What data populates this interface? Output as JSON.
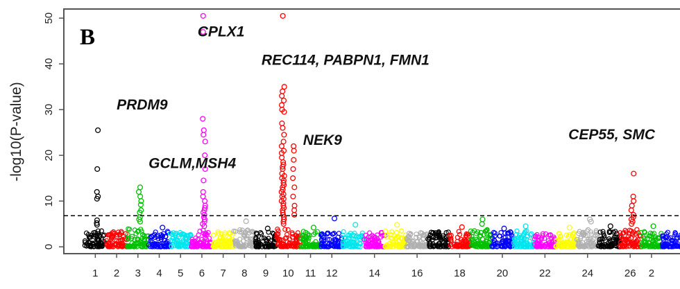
{
  "chart_data": {
    "type": "scatter",
    "panel_label": "B",
    "ylabel": "-log10(P-value)",
    "xlabel": "",
    "ylim": [
      -1.5,
      52
    ],
    "yticks": [
      0,
      10,
      20,
      30,
      40,
      50
    ],
    "threshold": 6.8,
    "grid": false,
    "x_tick_labels": [
      "1",
      "2",
      "3",
      "4",
      "5",
      "6",
      "7",
      "8",
      "9",
      "10",
      "11",
      "12",
      "14",
      "16",
      "18",
      "20",
      "22",
      "24",
      "26",
      "2"
    ],
    "chromosomes": [
      {
        "chr": 1,
        "color": "#000000",
        "baseline_max": 3.5,
        "peaks": [
          25.5,
          17,
          12,
          11,
          10.5,
          5.8,
          5.2,
          4.8
        ]
      },
      {
        "chr": 2,
        "color": "#ff0000",
        "baseline_max": 3.4,
        "peaks": []
      },
      {
        "chr": 3,
        "color": "#00c000",
        "baseline_max": 4.0,
        "peaks": [
          13,
          12,
          11,
          10,
          9.2,
          8,
          7.5,
          6.5,
          6,
          5.5
        ]
      },
      {
        "chr": 4,
        "color": "#0000ff",
        "baseline_max": 3.4,
        "peaks": [
          4.2
        ]
      },
      {
        "chr": 5,
        "color": "#00e5ee",
        "baseline_max": 3.2,
        "peaks": []
      },
      {
        "chr": 6,
        "color": "#ff00ff",
        "baseline_max": 3.8,
        "peaks": [
          50.5,
          47,
          28,
          25.5,
          24.5,
          23,
          20,
          17,
          14.5,
          12,
          11,
          10,
          9,
          8.5,
          8,
          7.5,
          7,
          6.5,
          6,
          5.5,
          5,
          4.5
        ]
      },
      {
        "chr": 7,
        "color": "#ffff00",
        "baseline_max": 3.3,
        "peaks": []
      },
      {
        "chr": 8,
        "color": "#b0b0b0",
        "baseline_max": 4.0,
        "peaks": [
          5.6
        ]
      },
      {
        "chr": 9,
        "color": "#000000",
        "baseline_max": 3.4,
        "peaks": [
          4.0
        ]
      },
      {
        "chr": 10,
        "color": "#ff0000",
        "baseline_max": 4.0,
        "peaks": [
          50.5,
          35,
          34,
          33,
          32,
          31,
          30,
          29.5,
          27,
          26,
          24.5,
          23,
          22,
          21,
          20.5,
          19.5,
          18.5,
          18,
          17.5,
          17,
          16,
          15.5,
          15,
          14.5,
          14,
          13.5,
          13,
          12.5,
          12,
          11.5,
          11,
          10.5,
          10,
          9.5,
          9,
          8.5,
          8,
          7.5,
          7,
          6.5,
          6,
          5.5,
          5
        ]
      },
      {
        "chr": 10.5,
        "color": "#ff0000",
        "baseline_max": 3.8,
        "peaks": [
          22,
          21,
          19,
          17,
          15,
          13,
          11,
          9,
          8,
          7
        ]
      },
      {
        "chr": 11,
        "color": "#00c000",
        "baseline_max": 3.4,
        "peaks": [
          4.2
        ]
      },
      {
        "chr": 12,
        "color": "#0000ff",
        "baseline_max": 3.2,
        "peaks": [
          6.2
        ]
      },
      {
        "chr": 13,
        "color": "#00e5ee",
        "baseline_max": 3.4,
        "peaks": [
          4.8
        ]
      },
      {
        "chr": 14,
        "color": "#ff00ff",
        "baseline_max": 3.2,
        "peaks": []
      },
      {
        "chr": 15,
        "color": "#ffff00",
        "baseline_max": 3.6,
        "peaks": [
          4.8
        ]
      },
      {
        "chr": 16,
        "color": "#b0b0b0",
        "baseline_max": 3.1,
        "peaks": []
      },
      {
        "chr": 17,
        "color": "#000000",
        "baseline_max": 3.3,
        "peaks": []
      },
      {
        "chr": 18,
        "color": "#ff0000",
        "baseline_max": 3.5,
        "peaks": [
          4.3
        ]
      },
      {
        "chr": 19,
        "color": "#00c000",
        "baseline_max": 3.8,
        "peaks": [
          6.0,
          5.0
        ]
      },
      {
        "chr": 20,
        "color": "#0000ff",
        "baseline_max": 3.3,
        "peaks": [
          4.0
        ]
      },
      {
        "chr": 21,
        "color": "#00e5ee",
        "baseline_max": 3.5,
        "peaks": [
          4.5
        ]
      },
      {
        "chr": 22,
        "color": "#ff00ff",
        "baseline_max": 3.0,
        "peaks": []
      },
      {
        "chr": 23,
        "color": "#ffff00",
        "baseline_max": 3.3,
        "peaks": [
          4.2
        ]
      },
      {
        "chr": 24,
        "color": "#b0b0b0",
        "baseline_max": 3.8,
        "peaks": [
          6.0,
          5.5
        ]
      },
      {
        "chr": 25,
        "color": "#000000",
        "baseline_max": 3.4,
        "peaks": [
          4.5
        ]
      },
      {
        "chr": 26,
        "color": "#ff0000",
        "baseline_max": 3.8,
        "peaks": [
          16,
          11,
          10,
          9,
          8,
          7,
          6.5,
          6,
          5.5,
          5
        ]
      },
      {
        "chr": 27,
        "color": "#00c000",
        "baseline_max": 3.5,
        "peaks": [
          4.5
        ]
      },
      {
        "chr": 28,
        "color": "#0000ff",
        "baseline_max": 3.2,
        "peaks": []
      }
    ],
    "annotations": [
      {
        "text": "PRDM9",
        "x": 1.5,
        "y": 30
      },
      {
        "text": "GCLM,MSH4",
        "x": 3.0,
        "y": 17.2
      },
      {
        "text": "CPLX1",
        "x": 5.3,
        "y": 46
      },
      {
        "text": "REC114, PABPN1, FMN1",
        "x": 8.3,
        "y": 39.8
      },
      {
        "text": "NEK9",
        "x": 10.7,
        "y": 22.3
      },
      {
        "text": "CEP55, SMC",
        "x": 23.6,
        "y": 23.5
      }
    ]
  }
}
